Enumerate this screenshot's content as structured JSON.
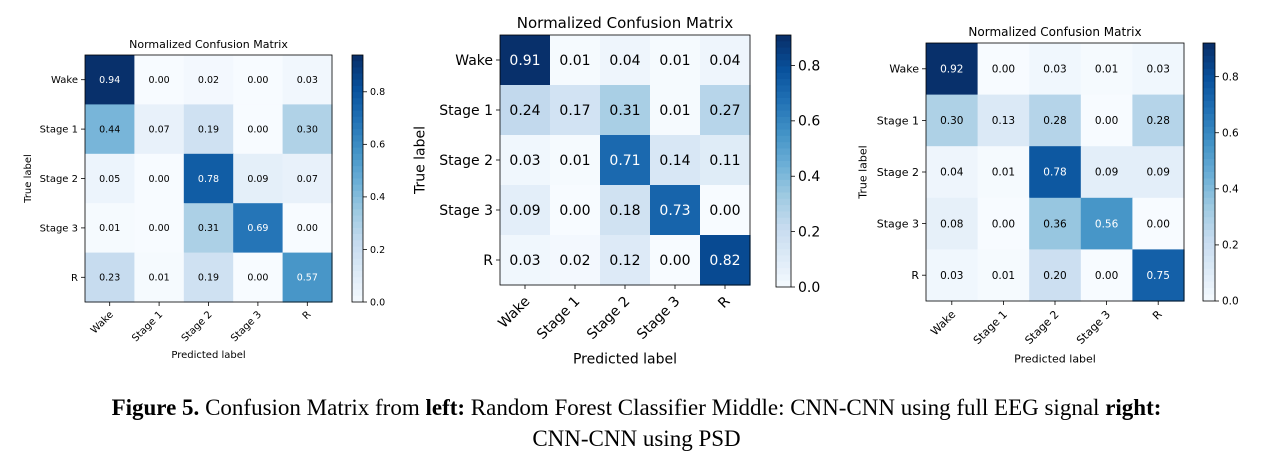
{
  "chart_data": [
    {
      "type": "heatmap",
      "title": "Normalized Confusion Matrix",
      "xlabel": "Predicted label",
      "ylabel": "True label",
      "x_categories": [
        "Wake",
        "Stage 1",
        "Stage 2",
        "Stage 3",
        "R"
      ],
      "y_categories": [
        "Wake",
        "Stage 1",
        "Stage 2",
        "Stage 3",
        "R"
      ],
      "values": [
        [
          0.94,
          0.0,
          0.02,
          0.0,
          0.03
        ],
        [
          0.44,
          0.07,
          0.19,
          0.0,
          0.3
        ],
        [
          0.05,
          0.0,
          0.78,
          0.09,
          0.07
        ],
        [
          0.01,
          0.0,
          0.31,
          0.69,
          0.0
        ],
        [
          0.23,
          0.01,
          0.19,
          0.0,
          0.57
        ]
      ],
      "colorbar": {
        "min": 0.0,
        "max": 0.94,
        "ticks": [
          "0.0",
          "0.2",
          "0.4",
          "0.6",
          "0.8"
        ],
        "colormap": "Blues"
      }
    },
    {
      "type": "heatmap",
      "title": "Normalized Confusion Matrix",
      "xlabel": "Predicted label",
      "ylabel": "True label",
      "x_categories": [
        "Wake",
        "Stage 1",
        "Stage 2",
        "Stage 3",
        "R"
      ],
      "y_categories": [
        "Wake",
        "Stage 1",
        "Stage 2",
        "Stage 3",
        "R"
      ],
      "values": [
        [
          0.91,
          0.01,
          0.04,
          0.01,
          0.04
        ],
        [
          0.24,
          0.17,
          0.31,
          0.01,
          0.27
        ],
        [
          0.03,
          0.01,
          0.71,
          0.14,
          0.11
        ],
        [
          0.09,
          0.0,
          0.18,
          0.73,
          0.0
        ],
        [
          0.03,
          0.02,
          0.12,
          0.0,
          0.82
        ]
      ],
      "colorbar": {
        "min": 0.0,
        "max": 0.91,
        "ticks": [
          "0.0",
          "0.2",
          "0.4",
          "0.6",
          "0.8"
        ],
        "colormap": "Blues"
      }
    },
    {
      "type": "heatmap",
      "title": "Normalized Confusion Matrix",
      "xlabel": "Predicted label",
      "ylabel": "True label",
      "x_categories": [
        "Wake",
        "Stage 1",
        "Stage 2",
        "Stage 3",
        "R"
      ],
      "y_categories": [
        "Wake",
        "Stage 1",
        "Stage 2",
        "Stage 3",
        "R"
      ],
      "values": [
        [
          0.92,
          0.0,
          0.03,
          0.01,
          0.03
        ],
        [
          0.3,
          0.13,
          0.28,
          0.0,
          0.28
        ],
        [
          0.04,
          0.01,
          0.78,
          0.09,
          0.09
        ],
        [
          0.08,
          0.0,
          0.36,
          0.56,
          0.0
        ],
        [
          0.03,
          0.01,
          0.2,
          0.0,
          0.75
        ]
      ],
      "colorbar": {
        "min": 0.0,
        "max": 0.92,
        "ticks": [
          "0.0",
          "0.2",
          "0.4",
          "0.6",
          "0.8"
        ],
        "colormap": "Blues"
      }
    }
  ],
  "caption": {
    "figure_label": "Figure 5.",
    "text_1": " Confusion Matrix from ",
    "left_label": "left:",
    "text_2": " Random Forest Classifier Middle: CNN-CNN using full EEG signal  ",
    "right_label": "right:",
    "text_3": "CNN-CNN using PSD"
  }
}
